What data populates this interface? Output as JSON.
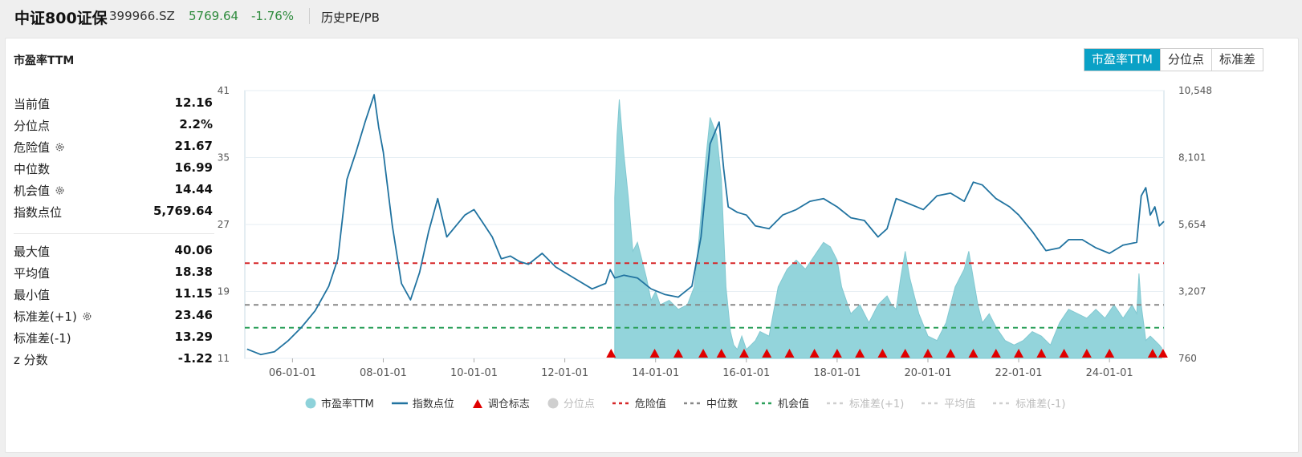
{
  "header": {
    "name": "中证800证保",
    "code": "399966.SZ",
    "price": "5769.64",
    "change": "-1.76%",
    "nav": "历史PE/PB"
  },
  "panel": {
    "title": "市盈率TTM",
    "tabs": [
      {
        "label": "市盈率TTM",
        "active": true
      },
      {
        "label": "分位点",
        "active": false
      },
      {
        "label": "标准差",
        "active": false
      }
    ]
  },
  "stats": {
    "group1": [
      {
        "label": "当前值",
        "value": "12.16",
        "gear": false
      },
      {
        "label": "分位点",
        "value": "2.2%",
        "gear": false
      },
      {
        "label": "危险值",
        "value": "21.67",
        "gear": true
      },
      {
        "label": "中位数",
        "value": "16.99",
        "gear": false
      },
      {
        "label": "机会值",
        "value": "14.44",
        "gear": true
      },
      {
        "label": "指数点位",
        "value": "5,769.64",
        "gear": false
      }
    ],
    "group2": [
      {
        "label": "最大值",
        "value": "40.06",
        "gear": false
      },
      {
        "label": "平均值",
        "value": "18.38",
        "gear": false
      },
      {
        "label": "最小值",
        "value": "11.15",
        "gear": false
      },
      {
        "label": "标准差(+1)",
        "value": "23.46",
        "gear": true
      },
      {
        "label": "标准差(-1)",
        "value": "13.29",
        "gear": false
      },
      {
        "label": "z 分数",
        "value": "-1.22",
        "gear": false
      }
    ]
  },
  "colors": {
    "pe_fill": "#8ed2da",
    "index_line": "#2173a0",
    "danger": "#d62728",
    "median": "#888888",
    "opportunity": "#2ca05a",
    "marker": "#e00000",
    "accent": "#0aa1c6"
  },
  "chart_data": {
    "type": "line",
    "x_ticks": [
      "06-01-01",
      "08-01-01",
      "10-01-01",
      "12-01-01",
      "14-01-01",
      "16-01-01",
      "18-01-01",
      "20-01-01",
      "22-01-01",
      "24-01-01"
    ],
    "y_left_ticks": [
      "41",
      "35",
      "27",
      "19",
      "11"
    ],
    "y_right_ticks": [
      "10,548",
      "8,101",
      "5,654",
      "3,207",
      "760"
    ],
    "left_ylim": [
      11,
      41
    ],
    "right_ylim": [
      760,
      10548
    ],
    "x_range": [
      2004.95,
      2025.2
    ],
    "danger": 21.67,
    "median": 16.99,
    "opportunity": 14.44,
    "series": [
      {
        "name": "市盈率TTM",
        "kind": "area",
        "x": [
          2013.1,
          2013.15,
          2013.2,
          2013.3,
          2013.4,
          2013.5,
          2013.6,
          2013.7,
          2013.8,
          2013.9,
          2014.0,
          2014.1,
          2014.3,
          2014.5,
          2014.7,
          2014.85,
          2014.95,
          2015.1,
          2015.2,
          2015.35,
          2015.45,
          2015.55,
          2015.65,
          2015.72,
          2015.8,
          2015.9,
          2016.0,
          2016.1,
          2016.2,
          2016.3,
          2016.5,
          2016.7,
          2016.9,
          2017.1,
          2017.3,
          2017.5,
          2017.7,
          2017.85,
          2018.0,
          2018.1,
          2018.3,
          2018.5,
          2018.7,
          2018.9,
          2019.1,
          2019.2,
          2019.3,
          2019.4,
          2019.5,
          2019.6,
          2019.8,
          2020.0,
          2020.2,
          2020.4,
          2020.6,
          2020.8,
          2020.9,
          2021.0,
          2021.1,
          2021.2,
          2021.35,
          2021.5,
          2021.7,
          2021.9,
          2022.1,
          2022.3,
          2022.5,
          2022.7,
          2022.9,
          2023.1,
          2023.3,
          2023.5,
          2023.7,
          2023.9,
          2024.1,
          2024.3,
          2024.5,
          2024.6,
          2024.65,
          2024.7,
          2024.75,
          2024.8,
          2024.9,
          2025.0,
          2025.1,
          2025.15
        ],
        "y": [
          29,
          36,
          40,
          34,
          29,
          23,
          24,
          22,
          20,
          17.5,
          18.5,
          17,
          17.5,
          16.5,
          17,
          19,
          24,
          33,
          38,
          36,
          31,
          19,
          14,
          12.5,
          12,
          13.5,
          12,
          12.5,
          13,
          14,
          13.5,
          19,
          21,
          22,
          21,
          22.5,
          24,
          23.5,
          22,
          19,
          16,
          17,
          15,
          17,
          18,
          17,
          16.5,
          20,
          23,
          20,
          16,
          13.5,
          13,
          15,
          19,
          21,
          23,
          20,
          17,
          15,
          16,
          14.5,
          13,
          12.5,
          13,
          14,
          13.5,
          12.5,
          15,
          16.5,
          16,
          15.5,
          16.5,
          15.5,
          17,
          15.5,
          17,
          16,
          20.5,
          17,
          15,
          13,
          13.5,
          13,
          12.5,
          12.16
        ]
      },
      {
        "name": "指数点位",
        "kind": "line",
        "x": [
          2005.0,
          2005.3,
          2005.6,
          2005.9,
          2006.2,
          2006.5,
          2006.8,
          2007.0,
          2007.2,
          2007.4,
          2007.6,
          2007.8,
          2007.9,
          2008.0,
          2008.2,
          2008.4,
          2008.6,
          2008.8,
          2009.0,
          2009.2,
          2009.4,
          2009.6,
          2009.8,
          2010.0,
          2010.2,
          2010.4,
          2010.6,
          2010.8,
          2011.0,
          2011.2,
          2011.5,
          2011.8,
          2012.0,
          2012.3,
          2012.6,
          2012.9,
          2013.0,
          2013.1,
          2013.3,
          2013.6,
          2013.9,
          2014.2,
          2014.5,
          2014.8,
          2015.0,
          2015.2,
          2015.4,
          2015.5,
          2015.6,
          2015.8,
          2016.0,
          2016.2,
          2016.5,
          2016.8,
          2017.1,
          2017.4,
          2017.7,
          2018.0,
          2018.3,
          2018.6,
          2018.9,
          2019.1,
          2019.3,
          2019.6,
          2019.9,
          2020.2,
          2020.5,
          2020.8,
          2021.0,
          2021.2,
          2021.5,
          2021.8,
          2022.0,
          2022.3,
          2022.6,
          2022.9,
          2023.1,
          2023.4,
          2023.7,
          2024.0,
          2024.3,
          2024.6,
          2024.7,
          2024.8,
          2024.9,
          2025.0,
          2025.1,
          2025.2
        ],
        "y": [
          1100,
          900,
          1000,
          1400,
          1900,
          2500,
          3400,
          4400,
          7300,
          8300,
          9400,
          10400,
          9200,
          8300,
          5600,
          3500,
          2900,
          3900,
          5400,
          6600,
          5200,
          5600,
          6000,
          6200,
          5700,
          5200,
          4400,
          4500,
          4300,
          4200,
          4600,
          4100,
          3900,
          3600,
          3300,
          3500,
          4000,
          3700,
          3800,
          3700,
          3300,
          3100,
          3000,
          3400,
          5200,
          8600,
          9400,
          7700,
          6300,
          6100,
          6000,
          5600,
          5500,
          6000,
          6200,
          6500,
          6600,
          6300,
          5900,
          5800,
          5200,
          5500,
          6600,
          6400,
          6200,
          6700,
          6800,
          6500,
          7200,
          7100,
          6600,
          6300,
          6000,
          5400,
          4700,
          4800,
          5100,
          5100,
          4800,
          4600,
          4900,
          5000,
          6700,
          7000,
          6000,
          6300,
          5600,
          5769.64
        ]
      },
      {
        "name": "调仓标志",
        "kind": "marker",
        "x": [
          2013.02,
          2013.98,
          2014.5,
          2015.05,
          2015.45,
          2015.95,
          2016.45,
          2016.95,
          2017.5,
          2018.0,
          2018.5,
          2019.0,
          2019.5,
          2020.0,
          2020.5,
          2021.0,
          2021.5,
          2022.0,
          2022.5,
          2023.0,
          2023.5,
          2024.0,
          2024.95,
          2025.18
        ]
      }
    ],
    "legend": [
      {
        "name": "市盈率TTM",
        "kind": "circle",
        "active": true
      },
      {
        "name": "指数点位",
        "kind": "line",
        "active": true
      },
      {
        "name": "调仓标志",
        "kind": "triangle",
        "active": true
      },
      {
        "name": "分位点",
        "kind": "circle",
        "active": false
      },
      {
        "name": "危险值",
        "kind": "dash",
        "active": true
      },
      {
        "name": "中位数",
        "kind": "dash",
        "active": true
      },
      {
        "name": "机会值",
        "kind": "dash",
        "active": true
      },
      {
        "name": "标准差(+1)",
        "kind": "dash",
        "active": false
      },
      {
        "name": "平均值",
        "kind": "dash",
        "active": false
      },
      {
        "name": "标准差(-1)",
        "kind": "dash",
        "active": false
      }
    ]
  }
}
